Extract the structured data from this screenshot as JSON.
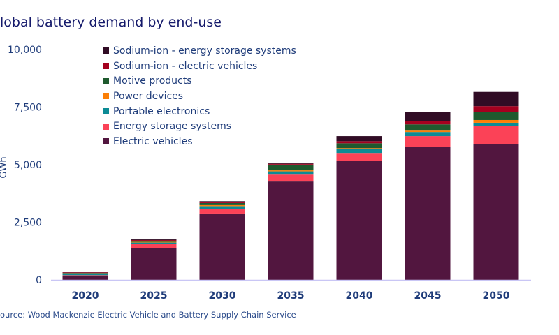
{
  "title": "lobal battery demand by end-use",
  "source": "ource: Wood Mackenzie Electric Vehicle and Battery Supply Chain Service",
  "chart_data": {
    "type": "stacked-bar",
    "title": "lobal battery demand by end-use",
    "xlabel": "",
    "ylabel": "GWh",
    "ylim": [
      0,
      10000
    ],
    "yticks": [
      "0",
      "2,500",
      "5,000",
      "7,500",
      "10,000"
    ],
    "ytick_values": [
      0,
      2500,
      5000,
      7500,
      10000
    ],
    "grid": false,
    "legend_placement": "top-left",
    "categories": [
      "2020",
      "2025",
      "2030",
      "2035",
      "2040",
      "2045",
      "2050"
    ],
    "series": [
      {
        "name": "Electric vehicles",
        "color": "#52163f",
        "values": [
          170,
          1390,
          2880,
          4270,
          5180,
          5760,
          5880
        ]
      },
      {
        "name": "Energy storage systems",
        "color": "#fb4257",
        "values": [
          30,
          170,
          210,
          300,
          330,
          480,
          790
        ]
      },
      {
        "name": "Portable electronics",
        "color": "#0c8b95",
        "values": [
          50,
          60,
          110,
          140,
          180,
          180,
          150
        ]
      },
      {
        "name": "Power devices",
        "color": "#fb7f07",
        "values": [
          30,
          30,
          45,
          45,
          30,
          90,
          120
        ]
      },
      {
        "name": "Motive products",
        "color": "#1f5a2e",
        "values": [
          20,
          45,
          90,
          250,
          210,
          240,
          360
        ]
      },
      {
        "name": "Sodium-ion - electric vehicles",
        "color": "#a5001f",
        "values": [
          20,
          30,
          30,
          35,
          90,
          150,
          240
        ]
      },
      {
        "name": "Sodium-ion - energy storage systems",
        "color": "#310c25",
        "values": [
          10,
          30,
          50,
          50,
          220,
          390,
          620
        ]
      }
    ]
  }
}
